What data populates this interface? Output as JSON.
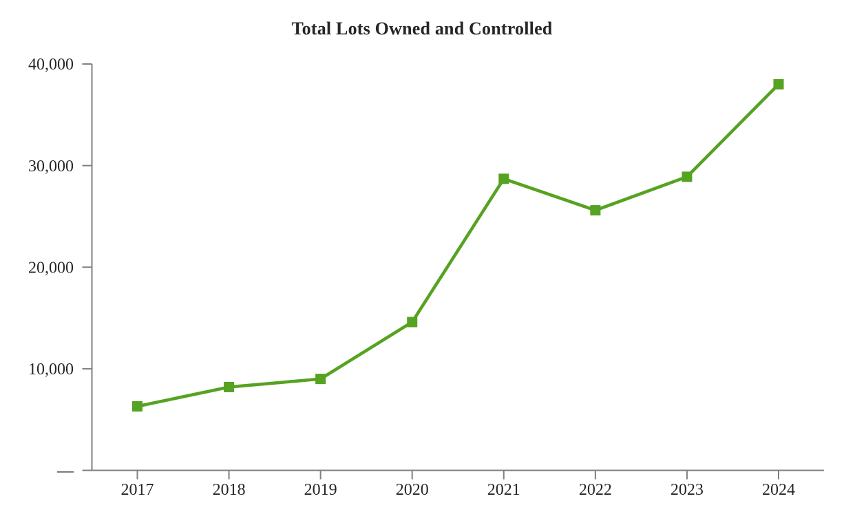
{
  "page": {
    "background_color": "#ffffff"
  },
  "chart_data": {
    "type": "line",
    "title": "Total Lots Owned and Controlled",
    "categories": [
      "2017",
      "2018",
      "2019",
      "2020",
      "2021",
      "2022",
      "2023",
      "2024"
    ],
    "series": [
      {
        "name": "Total Lots Owned and Controlled",
        "values": [
          6300,
          8200,
          9000,
          14600,
          28700,
          25600,
          28900,
          38000
        ],
        "color": "#56A221",
        "marker": "square"
      }
    ],
    "xlabel": "",
    "ylabel": "",
    "ylim": [
      0,
      40000
    ],
    "y_ticks": [
      0,
      10000,
      20000,
      30000,
      40000
    ],
    "y_tick_labels": [
      "—",
      "10,000",
      "20,000",
      "30,000",
      "40,000"
    ],
    "grid": false,
    "legend": "none",
    "axis_color": "#808080",
    "text_color": "#262626"
  }
}
